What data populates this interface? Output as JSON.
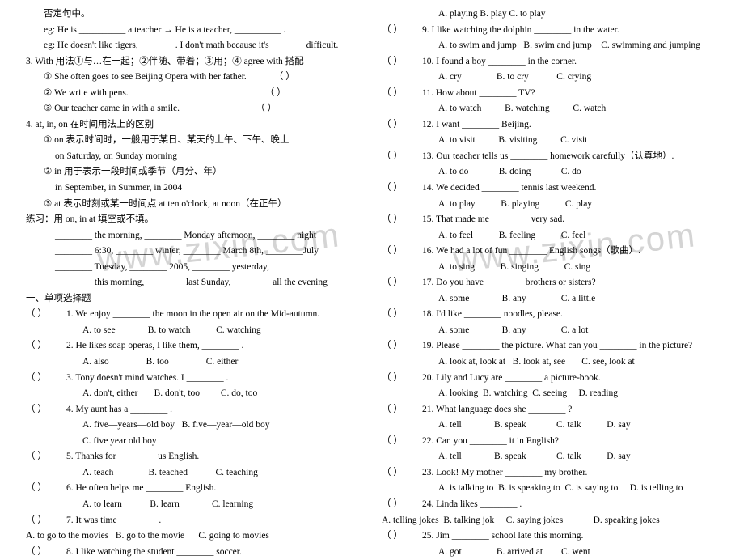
{
  "left": {
    "line1": "否定句中。",
    "eg1_pre": "eg: He is __________ a teacher → He is a teacher, __________ .",
    "eg2": "eg:    He doesn't like tigers, _______ . I don't math because it's _______ difficult.",
    "item3": "3. With  用法①与…在一起；②伴随、带着；③用；④ agree with 搭配",
    "item3_1": "① She often goes to see Beijing Opera with her father.",
    "item3_2": "② We write with pens.",
    "item3_3": "③ Our teacher came in with a smile.",
    "paren": "（                ）",
    "item4": "4. at, in, on  在时间用法上的区别",
    "item4_1": "① on 表示时间时，一般用于某日、某天的上午、下午、晚上",
    "item4_1b": "on Saturday, on Sunday morning",
    "item4_2": "② in 用于表示一段时间或季节（月分、年）",
    "item4_2b": "in September, in Summer, in 2004",
    "item4_3": "③ at  表示时刻或某一时间点  at ten o'clock, at noon（在正午）",
    "practice": "练习：用  on, in at  填空或不填。",
    "pr1": "________ the morning,   ________ Monday afternoon,   ________ night",
    "pr2": "________ 6:30,   ________ winter,   ________ March 8th,   ________July",
    "pr3": "________ Tuesday,   ________ 2005,   ________ yesterday,",
    "pr4": "________ this morning,   ________ last Sunday,   ________ all the evening",
    "sec1": "一、单项选择题",
    "questions": [
      {
        "n": "1",
        "t": "We enjoy ________ the moon in the open air on the Mid-autumn.",
        "opts": "A. to see              B. to watch           C. watching"
      },
      {
        "n": "2",
        "t": "He likes soap operas, I like them, ________ .",
        "opts": "A. also                B. too                C. either"
      },
      {
        "n": "3",
        "t": "Tony doesn't mind watches. I ________ .",
        "opts": "A. don't, either       B. don't, too         C. do, too"
      },
      {
        "n": "4",
        "t": "My aunt has a ________ .",
        "opts": "A. five—years—old boy   B. five—year—old boy",
        "opts2": "C. five year old boy"
      },
      {
        "n": "5",
        "t": "Thanks for ________ us English.",
        "opts": "A. teach               B. teached            C. teaching"
      },
      {
        "n": "6",
        "t": "He often helps me ________ English.",
        "opts": "A. to learn            B. learn              C. learning"
      },
      {
        "n": "7",
        "t": "It was time ________ .",
        "opts": "A. to go to the movies   B. go to the movie      C. going to movies",
        "noindent": true
      },
      {
        "n": "8",
        "t": "I like watching the student ________ soccer."
      }
    ]
  },
  "right": {
    "q8opts": "A. playing           B. play              C. to play",
    "questions": [
      {
        "n": "9",
        "t": "I like watching the dolphin ________ in the water.",
        "opts": "A. to swim and jump   B. swim and jump    C. swimming and jumping"
      },
      {
        "n": "10",
        "t": "I found a boy ________ in the corner.",
        "opts": "A. cry               B. to cry            C. crying"
      },
      {
        "n": "11",
        "t": "How about ________ TV?",
        "opts": "A. to watch          B. watching          C. watch"
      },
      {
        "n": "12",
        "t": "I want ________ Beijing.",
        "opts": "A. to visit          B. visiting          C. visit"
      },
      {
        "n": "13",
        "t": "Our teacher tells us ________ homework carefully（认真地）.",
        "opts": "A. to do             B. doing             C. do"
      },
      {
        "n": "14",
        "t": "  We decided ________ tennis last weekend.",
        "opts": "A. to play           B. playing           C. play"
      },
      {
        "n": "15",
        "t": "That made me ________ very sad.",
        "opts": "A. to feel           B. feeling           C. feel"
      },
      {
        "n": "16",
        "t": "We had a lot of fun ________ English songs（歌曲）.",
        "opts": "A. to sing           B. singing           C. sing"
      },
      {
        "n": "17",
        "t": "Do you have ________ brothers or sisters?",
        "opts": "A. some              B. any               C. a little"
      },
      {
        "n": "18",
        "t": "I'd like ________ noodles, please.",
        "opts": "A. some              B. any               C. a lot"
      },
      {
        "n": "19",
        "t": "Please ________ the picture. What can you ________ in the picture?",
        "opts": "A. look at, look at   B. look at, see       C. see, look at"
      },
      {
        "n": "20",
        "t": "Lily and Lucy are ________ a picture-book.",
        "opts": "A. looking  B. watching  C. seeing     D. reading"
      },
      {
        "n": "21",
        "t": "What language does she ________ ?",
        "opts": "A. tell              B. speak             C. talk           D. say"
      },
      {
        "n": "22",
        "t": "Can you ________ it in English?",
        "opts": "A. tell              B. speak             C. talk           D. say"
      },
      {
        "n": "23",
        "t": "Look! My mother ________ my brother.",
        "opts": "A. is talking to  B. is speaking to  C. is saying to     D. is telling to"
      },
      {
        "n": "24",
        "t": "Linda likes ________ .",
        "opts": "A. telling jokes  B. talking jok     C. saying jokes             D. speaking jokes",
        "noindent": true
      },
      {
        "n": "25",
        "t": "Jim ________ school late this morning.",
        "opts": "A. got               B. arrived at        C. went"
      }
    ]
  },
  "watermark": "www.zixin.com"
}
